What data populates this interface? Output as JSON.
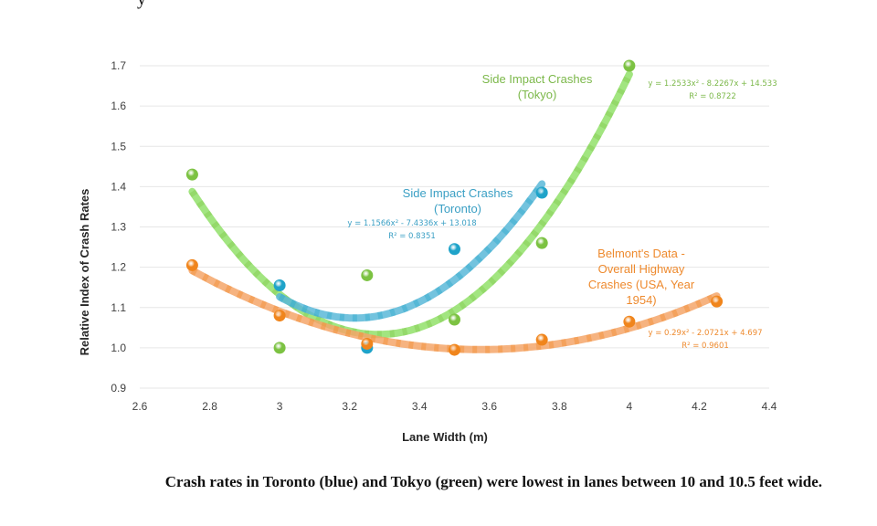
{
  "page": {
    "top_fragment": "y",
    "caption": "Crash rates in Toronto (blue) and Tokyo (green) were lowest in lanes between 10 and 10.5 feet wide."
  },
  "chart_data": {
    "type": "scatter",
    "title": "",
    "xlabel": "Lane Width (m)",
    "ylabel": "Relative Index of Crash Rates",
    "xlim": [
      2.6,
      4.4
    ],
    "ylim": [
      0.9,
      1.7
    ],
    "x_ticks": [
      "2.6",
      "2.8",
      "3",
      "3.2",
      "3.4",
      "3.6",
      "3.8",
      "4",
      "4.2",
      "4.4"
    ],
    "y_ticks": [
      "0.9",
      "1.0",
      "1.1",
      "1.2",
      "1.3",
      "1.4",
      "1.5",
      "1.6",
      "1.7"
    ],
    "grid": "horizontal",
    "legend": "none (inline annotations)",
    "series": [
      {
        "name": "Side Impact Crashes (Tokyo)",
        "label_lines": [
          "Side Impact Crashes",
          "(Tokyo)"
        ],
        "color": "#7cc242",
        "trend_color": "#92e06a",
        "x": [
          2.75,
          3.0,
          3.25,
          3.5,
          3.75,
          4.0
        ],
        "y": [
          1.43,
          1.0,
          1.18,
          1.07,
          1.26,
          1.7
        ],
        "trendline": {
          "type": "polynomial",
          "coefficients": [
            1.2533,
            -8.2267,
            14.533
          ],
          "x_range": [
            2.75,
            4.0
          ]
        },
        "equation": "y = 1.2533x² - 8.2267x + 14.533",
        "r_squared": "R² = 0.8722"
      },
      {
        "name": "Side Impact Crashes (Toronto)",
        "label_lines": [
          "Side Impact Crashes",
          "(Toronto)"
        ],
        "color": "#1fa3c9",
        "trend_color": "#5ab8d8",
        "x": [
          3.0,
          3.25,
          3.5,
          3.75
        ],
        "y": [
          1.155,
          1.0,
          1.245,
          1.385
        ],
        "trendline": {
          "type": "polynomial",
          "coefficients": [
            1.1566,
            -7.4336,
            13.018
          ],
          "x_range": [
            3.0,
            3.75
          ]
        },
        "equation": "y = 1.1566x² - 7.4336x + 13.018",
        "r_squared": "R² = 0.8351"
      },
      {
        "name": "Belmont's Data - Overall Highway Crashes (USA, Year 1954)",
        "label_lines": [
          "Belmont's Data -",
          "Overall Highway",
          "Crashes (USA, Year",
          "1954)"
        ],
        "color": "#f0851c",
        "trend_color": "#f4a66a",
        "x": [
          2.75,
          3.0,
          3.25,
          3.5,
          3.75,
          4.0,
          4.25
        ],
        "y": [
          1.205,
          1.08,
          1.01,
          0.995,
          1.02,
          1.065,
          1.115
        ],
        "trendline": {
          "type": "polynomial",
          "coefficients": [
            0.29,
            -2.0721,
            4.697
          ],
          "x_range": [
            2.75,
            4.25
          ]
        },
        "equation": "y = 0.29x² - 2.0721x + 4.697",
        "r_squared": "R² = 0.9601"
      }
    ]
  }
}
